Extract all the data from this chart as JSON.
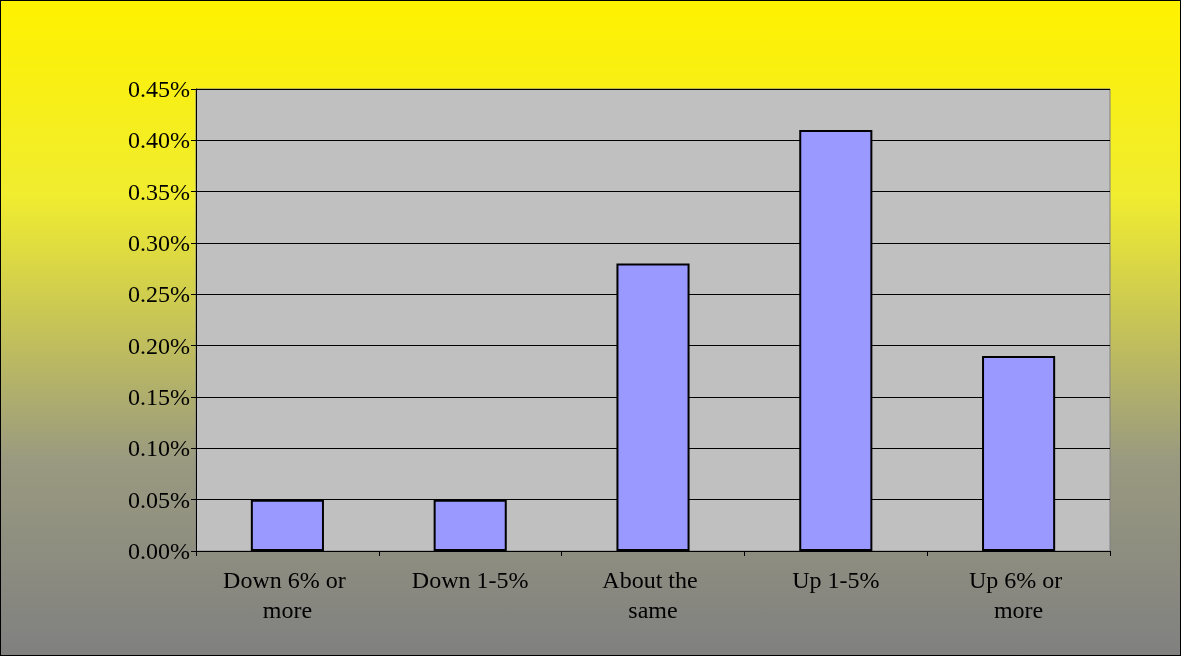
{
  "chart_data": {
    "type": "bar",
    "categories": [
      "Down 6% or more",
      "Down 1-5%",
      "About the same",
      "Up 1-5%",
      "Up 6% or more"
    ],
    "values": [
      0.05,
      0.05,
      0.28,
      0.41,
      0.19
    ],
    "color": "#9999ff",
    "ylim": [
      0,
      0.45
    ],
    "yticks": [
      {
        "value": 0,
        "label": "0.00%"
      },
      {
        "value": 0.05,
        "label": "0.05%"
      },
      {
        "value": 0.1,
        "label": "0.10%"
      },
      {
        "value": 0.15,
        "label": "0.15%"
      },
      {
        "value": 0.2,
        "label": "0.20%"
      },
      {
        "value": 0.25,
        "label": "0.25%"
      },
      {
        "value": 0.3,
        "label": "0.30%"
      },
      {
        "value": 0.35,
        "label": "0.35%"
      },
      {
        "value": 0.4,
        "label": "0.40%"
      },
      {
        "value": 0.45,
        "label": "0.45%"
      }
    ],
    "grid": "y"
  }
}
